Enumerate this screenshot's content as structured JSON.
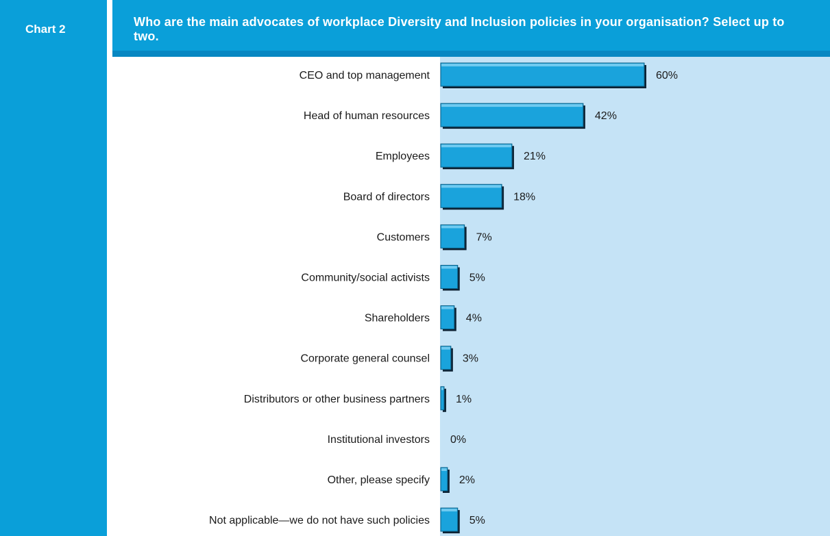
{
  "panel": {
    "chart_tag": "Chart 2",
    "title": "Who are the main advocates of workplace Diversity and Inclusion policies in your organisation? Select up to two."
  },
  "colors": {
    "band": "#0a9fd9",
    "plot_background": "#c5e3f6",
    "bar_fill": "#1aa3dc",
    "bar_shadow": "#0d2233"
  },
  "chart_data": {
    "type": "bar",
    "orientation": "horizontal",
    "title": "Who are the main advocates of workplace Diversity and Inclusion policies in your organisation? Select up to two.",
    "xlabel": "",
    "ylabel": "",
    "xlim": [
      0,
      100
    ],
    "grid": false,
    "legend": "none",
    "categories": [
      "CEO and top management",
      "Head of human resources",
      "Employees",
      "Board of directors",
      "Customers",
      "Community/social activists",
      "Shareholders",
      "Corporate general counsel",
      "Distributors or other business partners",
      "Institutional investors",
      "Other, please specify",
      "Not applicable—we do not have such policies"
    ],
    "values": [
      60,
      42,
      21,
      18,
      7,
      5,
      4,
      3,
      1,
      0,
      2,
      5
    ],
    "value_labels": [
      "60%",
      "42%",
      "21%",
      "18%",
      "7%",
      "5%",
      "4%",
      "3%",
      "1%",
      "0%",
      "2%",
      "5%"
    ]
  }
}
